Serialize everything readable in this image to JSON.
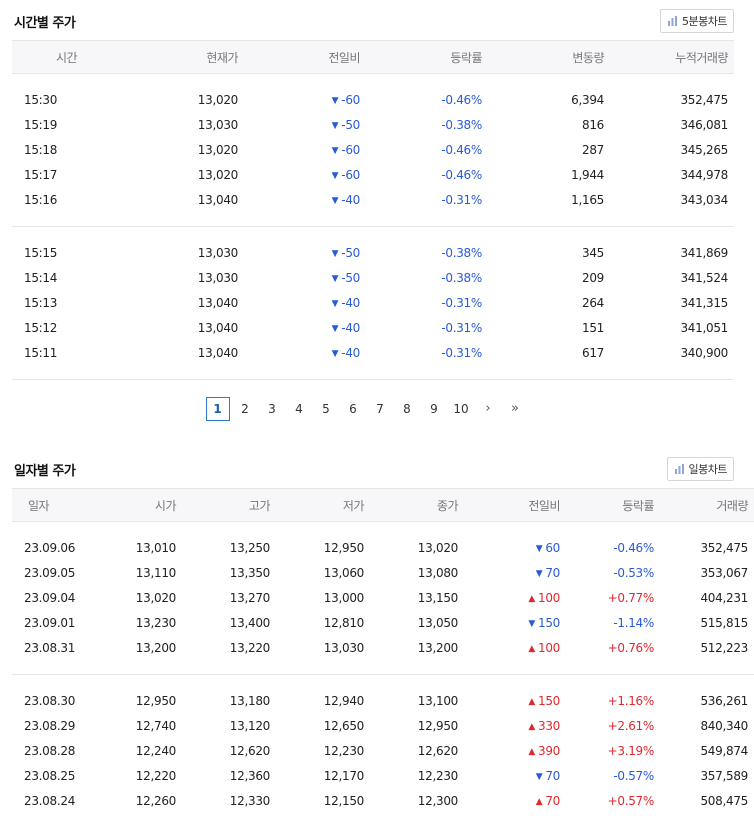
{
  "time_section": {
    "title": "시간별 주가",
    "chart_button": "5분봉차트",
    "columns": [
      "시간",
      "현재가",
      "전일비",
      "등락률",
      "변동량",
      "누적거래량"
    ],
    "groups": [
      [
        {
          "time": "15:30",
          "price": "13,020",
          "change_dir": "down",
          "change": "-60",
          "rate": "-0.46%",
          "volume": "6,394",
          "cum": "352,475"
        },
        {
          "time": "15:19",
          "price": "13,030",
          "change_dir": "down",
          "change": "-50",
          "rate": "-0.38%",
          "volume": "816",
          "cum": "346,081"
        },
        {
          "time": "15:18",
          "price": "13,020",
          "change_dir": "down",
          "change": "-60",
          "rate": "-0.46%",
          "volume": "287",
          "cum": "345,265"
        },
        {
          "time": "15:17",
          "price": "13,020",
          "change_dir": "down",
          "change": "-60",
          "rate": "-0.46%",
          "volume": "1,944",
          "cum": "344,978"
        },
        {
          "time": "15:16",
          "price": "13,040",
          "change_dir": "down",
          "change": "-40",
          "rate": "-0.31%",
          "volume": "1,165",
          "cum": "343,034"
        }
      ],
      [
        {
          "time": "15:15",
          "price": "13,030",
          "change_dir": "down",
          "change": "-50",
          "rate": "-0.38%",
          "volume": "345",
          "cum": "341,869"
        },
        {
          "time": "15:14",
          "price": "13,030",
          "change_dir": "down",
          "change": "-50",
          "rate": "-0.38%",
          "volume": "209",
          "cum": "341,524"
        },
        {
          "time": "15:13",
          "price": "13,040",
          "change_dir": "down",
          "change": "-40",
          "rate": "-0.31%",
          "volume": "264",
          "cum": "341,315"
        },
        {
          "time": "15:12",
          "price": "13,040",
          "change_dir": "down",
          "change": "-40",
          "rate": "-0.31%",
          "volume": "151",
          "cum": "341,051"
        },
        {
          "time": "15:11",
          "price": "13,040",
          "change_dir": "down",
          "change": "-40",
          "rate": "-0.31%",
          "volume": "617",
          "cum": "340,900"
        }
      ]
    ]
  },
  "pagination": {
    "active": "1",
    "pages": [
      "2",
      "3",
      "4",
      "5",
      "6",
      "7",
      "8",
      "9",
      "10"
    ],
    "next": "›",
    "last": "»"
  },
  "daily_section": {
    "title": "일자별 주가",
    "chart_button": "일봉차트",
    "columns": [
      "일자",
      "시가",
      "고가",
      "저가",
      "종가",
      "전일비",
      "등락률",
      "거래량"
    ],
    "groups": [
      [
        {
          "date": "23.09.06",
          "open": "13,010",
          "high": "13,250",
          "low": "12,950",
          "close": "13,020",
          "change_dir": "down",
          "change": "60",
          "rate": "-0.46%",
          "volume": "352,475"
        },
        {
          "date": "23.09.05",
          "open": "13,110",
          "high": "13,350",
          "low": "13,060",
          "close": "13,080",
          "change_dir": "down",
          "change": "70",
          "rate": "-0.53%",
          "volume": "353,067"
        },
        {
          "date": "23.09.04",
          "open": "13,020",
          "high": "13,270",
          "low": "13,000",
          "close": "13,150",
          "change_dir": "up",
          "change": "100",
          "rate": "+0.77%",
          "volume": "404,231"
        },
        {
          "date": "23.09.01",
          "open": "13,230",
          "high": "13,400",
          "low": "12,810",
          "close": "13,050",
          "change_dir": "down",
          "change": "150",
          "rate": "-1.14%",
          "volume": "515,815"
        },
        {
          "date": "23.08.31",
          "open": "13,200",
          "high": "13,220",
          "low": "13,030",
          "close": "13,200",
          "change_dir": "up",
          "change": "100",
          "rate": "+0.76%",
          "volume": "512,223"
        }
      ],
      [
        {
          "date": "23.08.30",
          "open": "12,950",
          "high": "13,180",
          "low": "12,940",
          "close": "13,100",
          "change_dir": "up",
          "change": "150",
          "rate": "+1.16%",
          "volume": "536,261"
        },
        {
          "date": "23.08.29",
          "open": "12,740",
          "high": "13,120",
          "low": "12,650",
          "close": "12,950",
          "change_dir": "up",
          "change": "330",
          "rate": "+2.61%",
          "volume": "840,340"
        },
        {
          "date": "23.08.28",
          "open": "12,240",
          "high": "12,620",
          "low": "12,230",
          "close": "12,620",
          "change_dir": "up",
          "change": "390",
          "rate": "+3.19%",
          "volume": "549,874"
        },
        {
          "date": "23.08.25",
          "open": "12,220",
          "high": "12,360",
          "low": "12,170",
          "close": "12,230",
          "change_dir": "down",
          "change": "70",
          "rate": "-0.57%",
          "volume": "357,589"
        },
        {
          "date": "23.08.24",
          "open": "12,260",
          "high": "12,330",
          "low": "12,150",
          "close": "12,300",
          "change_dir": "up",
          "change": "70",
          "rate": "+0.57%",
          "volume": "508,475"
        }
      ]
    ]
  },
  "colors": {
    "down": "#2a5bd7",
    "up": "#e0292f",
    "accent": "#2a7ac7"
  }
}
